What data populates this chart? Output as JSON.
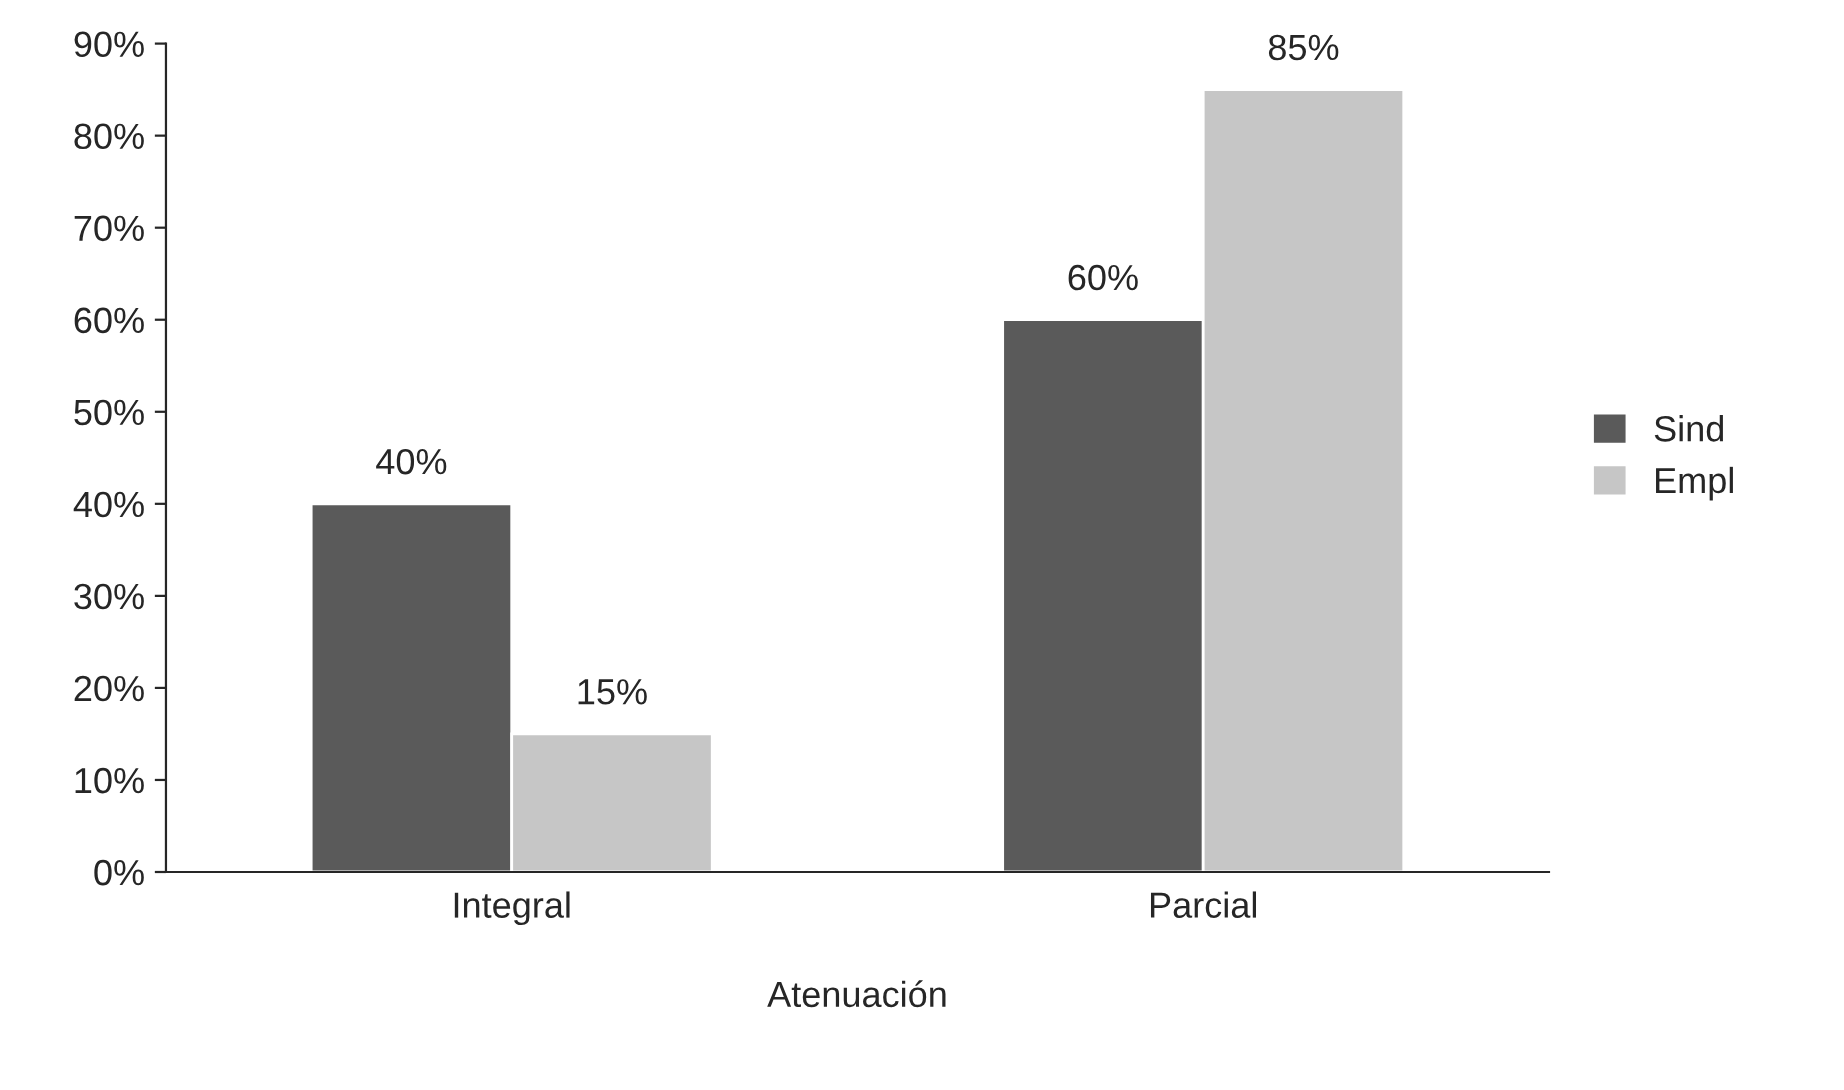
{
  "chart_data": {
    "type": "bar",
    "xlabel": "Atenuación",
    "categories": [
      "Integral",
      "Parcial"
    ],
    "series": [
      {
        "name": "Sind",
        "color": "#5a5a5a",
        "values": [
          40,
          60
        ],
        "value_labels": [
          "40%",
          "60%"
        ]
      },
      {
        "name": "Empl",
        "color": "#c6c6c6",
        "values": [
          15,
          85
        ],
        "value_labels": [
          "15%",
          "85%"
        ]
      }
    ],
    "ylim": [
      0,
      90
    ],
    "yticks": [
      {
        "value": 0,
        "label": "0%"
      },
      {
        "value": 10,
        "label": "10%"
      },
      {
        "value": 20,
        "label": "20%"
      },
      {
        "value": 30,
        "label": "30%"
      },
      {
        "value": 40,
        "label": "40%"
      },
      {
        "value": 50,
        "label": "50%"
      },
      {
        "value": 60,
        "label": "60%"
      },
      {
        "value": 70,
        "label": "70%"
      },
      {
        "value": 80,
        "label": "80%"
      },
      {
        "value": 90,
        "label": "90%"
      }
    ],
    "grid": false,
    "legend": "right"
  }
}
